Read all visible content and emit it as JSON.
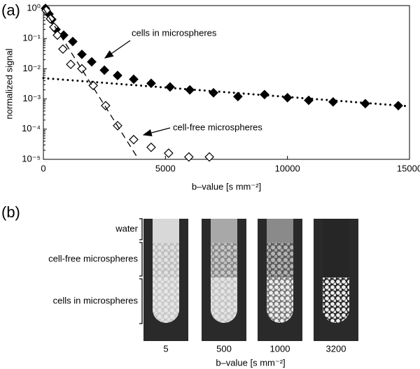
{
  "panel_a_label": "(a)",
  "chart_data": {
    "type": "scatter",
    "yscale": "log",
    "y_label": "normalized signal",
    "x_label": "b–value [s mm⁻²]",
    "xlim": [
      0,
      15000
    ],
    "xticks": [
      0,
      5000,
      10000,
      15000
    ],
    "ylim": [
      1e-05,
      1
    ],
    "yticks": [
      {
        "value": 1e-05,
        "label": "10⁻⁵"
      },
      {
        "value": 0.0001,
        "label": "10⁻⁴"
      },
      {
        "value": 0.001,
        "label": "10⁻³"
      },
      {
        "value": 0.01,
        "label": "10⁻²"
      },
      {
        "value": 0.1,
        "label": "10⁻¹"
      },
      {
        "value": 1,
        "label": "10⁰"
      }
    ],
    "series": [
      {
        "color": "#000000",
        "marker": "diamond",
        "filled": true,
        "x": [
          86,
          230,
          345,
          517,
          832,
          1205,
          1577,
          1980,
          2500,
          3040,
          3700,
          4415,
          5190,
          6000,
          6970,
          7970,
          9060,
          10000,
          10870,
          11870,
          13190,
          14540
        ],
        "values": [
          1.0,
          0.65,
          0.43,
          0.2,
          0.13,
          0.08,
          0.03,
          0.017,
          0.009,
          0.006,
          0.0045,
          0.0033,
          0.0025,
          0.002,
          0.0016,
          0.0012,
          0.0014,
          0.0011,
          0.0009,
          0.0008,
          0.0007,
          0.0006
        ]
      },
      {
        "color": "#000000",
        "marker": "diamond",
        "filled": false,
        "x": [
          115,
          290,
          430,
          575,
          800,
          1120,
          1577,
          2040,
          2550,
          3040,
          3700,
          4415,
          5130,
          5960,
          6800
        ],
        "values": [
          0.85,
          0.45,
          0.24,
          0.13,
          0.045,
          0.014,
          0.01,
          0.0028,
          0.0006,
          0.00013,
          4.5e-05,
          2.5e-05,
          1.6e-05,
          1.2e-05,
          1.2e-05
        ]
      },
      {
        "color": "#000000",
        "marker": "none",
        "line": "dotted",
        "x": [
          0,
          15000
        ],
        "values": [
          0.0049,
          0.00057
        ]
      },
      {
        "color": "#000000",
        "marker": "none",
        "line": "dashed",
        "x": [
          0,
          3900
        ],
        "values": [
          1,
          1e-05
        ]
      }
    ],
    "annotations": [
      "cells in microspheres",
      "cell-free microspheres"
    ]
  },
  "panel_b": {
    "label": "(b)",
    "regions": [
      "water",
      "cell-free microspheres",
      "cells in microspheres"
    ],
    "b_values": [
      "5",
      "500",
      "1000",
      "3200"
    ],
    "x_label": "b–value [s mm⁻²]"
  }
}
